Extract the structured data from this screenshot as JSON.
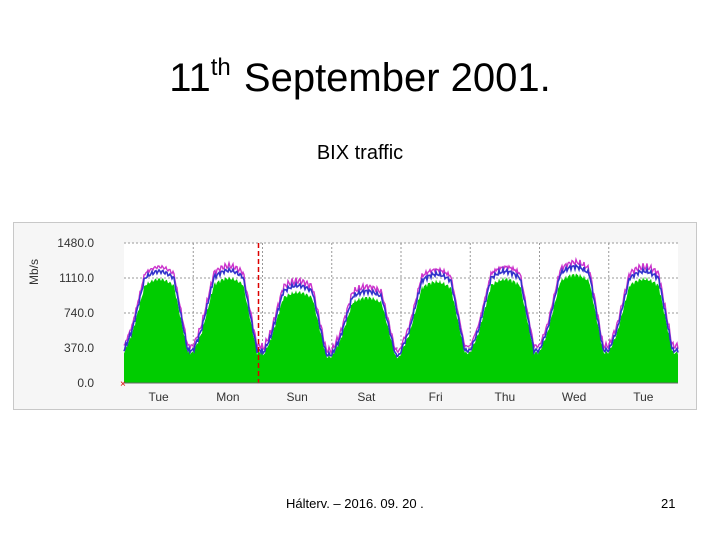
{
  "slide": {
    "title_prefix": "11",
    "title_sup": "th",
    "title_rest": "September 2001.",
    "subtitle": "BIX traffic",
    "footer": "Hálterv. – 2016. 09. 20 .",
    "page_number": "21"
  },
  "chart_data": {
    "type": "area",
    "title": "",
    "ylabel": "Mb/s",
    "xlabel": "",
    "ylim": [
      0,
      1480
    ],
    "y_ticks": [
      0,
      370,
      740,
      1110,
      1480
    ],
    "y_tick_labels": [
      "0.0",
      "370.0",
      "740.0",
      "1110.0",
      "1480.0"
    ],
    "categories": [
      "Tue",
      "Mon",
      "Sun",
      "Sat",
      "Fri",
      "Thu",
      "Wed",
      "Tue"
    ],
    "grid": true,
    "event_marker_label": "11 September 2001",
    "daily_peaks": [
      1180,
      1190,
      1030,
      970,
      1150,
      1180,
      1230,
      1180
    ],
    "daily_troughs": [
      300,
      300,
      260,
      260,
      300,
      300,
      300,
      300
    ],
    "series": [
      {
        "values_note": "",
        "color": "#00cc00"
      },
      {
        "color": "#3333cc"
      },
      {
        "color": "#cc33cc"
      }
    ],
    "colors": {
      "fill": "#00cc00",
      "line_avg": "#3333cc",
      "line_max": "#cc33cc",
      "grid": "#999999",
      "event_line": "#dd0000",
      "plot_bg": "#ffffff"
    }
  }
}
